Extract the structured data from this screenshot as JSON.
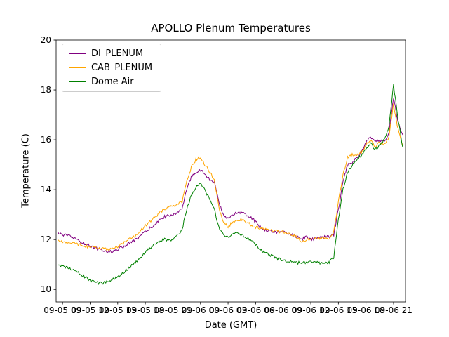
{
  "chart_data": {
    "type": "line",
    "title": "APOLLO Plenum Temperatures",
    "xlabel": "Date (GMT)",
    "ylabel": "Temperature (C)",
    "x_unit": "hours since 2000-09-05 00:00 GMT",
    "xlim": [
      8.3,
      46.3
    ],
    "ylim": [
      9.5,
      20
    ],
    "y_ticks": [
      10,
      12,
      14,
      16,
      18,
      20
    ],
    "x_ticks": [
      9,
      12,
      15,
      18,
      21,
      24,
      27,
      30,
      33,
      36,
      39,
      42,
      45
    ],
    "x_tick_labels": [
      "09-05 09",
      "09-05 12",
      "09-05 15",
      "09-05 18",
      "09-05 21",
      "09-06 00",
      "09-06 03",
      "09-06 06",
      "09-06 09",
      "09-06 12",
      "09-06 15",
      "09-06 18",
      "09-06 21"
    ],
    "grid": false,
    "legend_position": "upper left",
    "noise_amplitude": 0.06,
    "x": [
      8.5,
      9,
      10,
      11,
      12,
      13,
      14,
      15,
      16,
      17,
      18,
      19,
      20,
      21,
      22,
      22.5,
      23,
      23.5,
      24,
      24.5,
      25,
      25.5,
      26,
      26.5,
      27,
      27.5,
      28,
      28.5,
      29,
      29.5,
      30,
      30.5,
      31,
      32,
      33,
      34,
      35,
      35.5,
      36,
      37,
      38,
      38.5,
      39,
      39.5,
      40,
      40.5,
      41,
      41.5,
      42,
      42.5,
      43,
      43.5,
      44,
      44.5,
      45,
      45.5,
      46
    ],
    "series": [
      {
        "name": "DI_PLENUM",
        "color": "#800080",
        "values": [
          12.25,
          12.2,
          12.1,
          11.9,
          11.75,
          11.6,
          11.5,
          11.6,
          11.8,
          12.0,
          12.3,
          12.6,
          12.9,
          13.0,
          13.2,
          14.0,
          14.5,
          14.7,
          14.8,
          14.6,
          14.4,
          14.3,
          13.5,
          13.0,
          12.8,
          13.0,
          13.1,
          13.1,
          13.0,
          12.9,
          12.7,
          12.5,
          12.4,
          12.3,
          12.3,
          12.2,
          12.0,
          12.1,
          12.0,
          12.1,
          12.1,
          12.2,
          13.2,
          14.3,
          15.0,
          15.1,
          15.3,
          15.5,
          15.9,
          16.1,
          15.9,
          16.0,
          15.9,
          16.3,
          17.7,
          16.7,
          16.2
        ]
      },
      {
        "name": "CAB_PLENUM",
        "color": "#ffa500",
        "values": [
          11.95,
          11.9,
          11.85,
          11.8,
          11.7,
          11.65,
          11.6,
          11.7,
          11.95,
          12.2,
          12.55,
          12.9,
          13.2,
          13.35,
          13.5,
          14.3,
          14.9,
          15.2,
          15.3,
          15.0,
          14.7,
          14.4,
          13.3,
          12.7,
          12.5,
          12.7,
          12.8,
          12.8,
          12.7,
          12.6,
          12.5,
          12.45,
          12.4,
          12.35,
          12.3,
          12.2,
          11.95,
          12.0,
          12.0,
          12.05,
          12.05,
          12.3,
          13.5,
          14.6,
          15.3,
          15.4,
          15.4,
          15.5,
          15.8,
          16.0,
          15.7,
          15.9,
          15.8,
          16.1,
          17.4,
          16.4,
          15.8
        ]
      },
      {
        "name": "Dome Air",
        "color": "#008000",
        "values": [
          11.0,
          10.95,
          10.8,
          10.6,
          10.35,
          10.25,
          10.3,
          10.5,
          10.8,
          11.1,
          11.5,
          11.8,
          12.0,
          12.0,
          12.4,
          13.2,
          13.8,
          14.1,
          14.25,
          14.0,
          13.6,
          13.2,
          12.5,
          12.2,
          12.1,
          12.2,
          12.25,
          12.2,
          12.1,
          12.0,
          11.8,
          11.6,
          11.5,
          11.3,
          11.15,
          11.1,
          11.05,
          11.1,
          11.1,
          11.05,
          11.1,
          11.3,
          12.8,
          14.0,
          14.7,
          15.0,
          15.2,
          15.4,
          15.6,
          15.9,
          15.6,
          15.8,
          16.0,
          16.5,
          18.2,
          16.8,
          15.7
        ]
      }
    ]
  }
}
